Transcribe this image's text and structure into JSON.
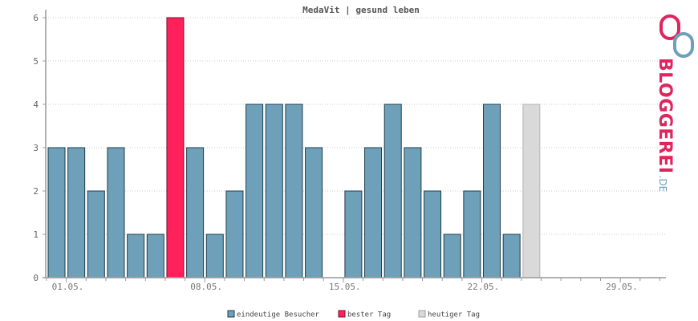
{
  "chart_data": {
    "type": "bar",
    "title": "MedaVit | gesund leben",
    "xlabel": "",
    "ylabel": "",
    "ylim": [
      0,
      6
    ],
    "yticks": [
      0,
      1,
      2,
      3,
      4,
      5,
      6
    ],
    "grid": true,
    "legend_position": "bottom",
    "days": [
      "01.05.",
      "02.05.",
      "03.05.",
      "04.05.",
      "05.05.",
      "06.05.",
      "07.05.",
      "08.05.",
      "09.05.",
      "10.05.",
      "11.05.",
      "12.05.",
      "13.05.",
      "14.05.",
      "15.05.",
      "16.05.",
      "17.05.",
      "18.05.",
      "19.05.",
      "20.05.",
      "21.05.",
      "22.05.",
      "23.05.",
      "24.05.",
      "25.05.",
      "26.05.",
      "27.05.",
      "28.05.",
      "29.05.",
      "30.05.",
      "31.05."
    ],
    "x_tick_labels": [
      "01.05.",
      "08.05.",
      "15.05.",
      "22.05.",
      "29.05."
    ],
    "values": [
      3,
      3,
      2,
      3,
      1,
      1,
      6,
      3,
      1,
      2,
      4,
      4,
      4,
      3,
      0,
      2,
      3,
      4,
      3,
      2,
      1,
      2,
      4,
      1,
      4,
      0,
      0,
      0,
      0,
      0,
      0
    ],
    "best_day": "07.05.",
    "today": "25.05.",
    "legend": [
      {
        "label": "eindeutige Besucher",
        "color": "#6ea1b9"
      },
      {
        "label": "bester Tag",
        "color": "#ff225a"
      },
      {
        "label": "heutiger Tag",
        "color": "#d9d9d9"
      }
    ]
  },
  "logo": {
    "brand": "BLOGGEREI",
    "tld": ".DE",
    "colors": {
      "red": "#e0245e",
      "blue": "#6ea1b9"
    }
  }
}
